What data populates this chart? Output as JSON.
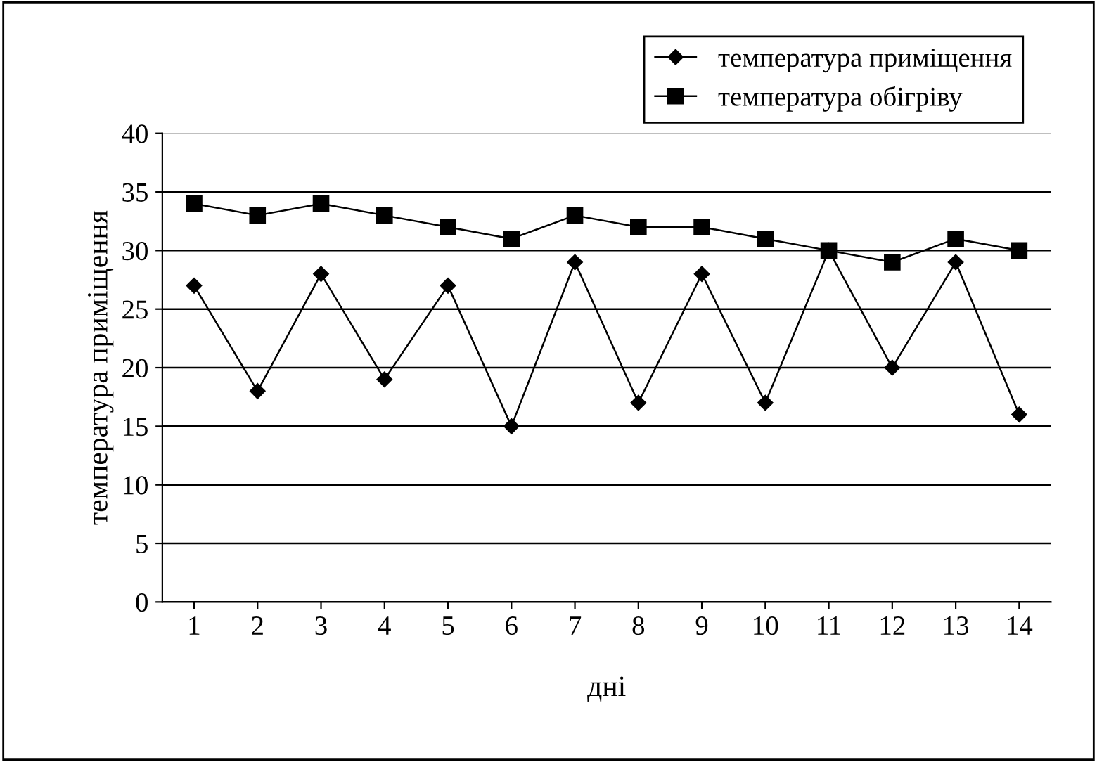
{
  "chart_data": {
    "type": "line",
    "xlabel": "дні",
    "ylabel": "температура приміщення",
    "categories": [
      "1",
      "2",
      "3",
      "4",
      "5",
      "6",
      "7",
      "8",
      "9",
      "10",
      "11",
      "12",
      "13",
      "14"
    ],
    "series": [
      {
        "name": "температура приміщення",
        "color": "#000000",
        "marker": "diamond",
        "values": [
          27,
          18,
          28,
          19,
          27,
          15,
          29,
          17,
          28,
          17,
          30,
          20,
          29,
          16
        ]
      },
      {
        "name": "температура обігріву",
        "color": "#000000",
        "marker": "square",
        "values": [
          34,
          33,
          34,
          33,
          32,
          31,
          33,
          32,
          32,
          31,
          30,
          29,
          31,
          30
        ]
      }
    ],
    "ylim": [
      0,
      40
    ],
    "yticks": [
      0,
      5,
      10,
      15,
      20,
      25,
      30,
      35,
      40
    ],
    "grid": "y",
    "legend": "top right",
    "line_style": "solid"
  }
}
